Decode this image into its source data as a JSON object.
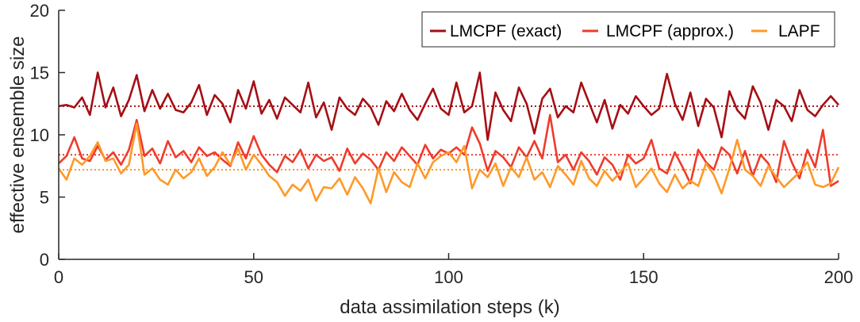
{
  "chart_data": {
    "type": "line",
    "title": "",
    "xlabel": "data assimilation steps (k)",
    "ylabel": "effective ensemble size",
    "xlim": [
      0,
      200
    ],
    "ylim": [
      0,
      20
    ],
    "xticks": [
      0,
      50,
      100,
      150,
      200
    ],
    "yticks": [
      0,
      5,
      10,
      15,
      20
    ],
    "grid": false,
    "legend_position": "top-right",
    "series": [
      {
        "name": "LMCPF (exact)",
        "color": "#a50f15",
        "mean": 12.3,
        "x": [
          0,
          2,
          4,
          6,
          8,
          10,
          12,
          14,
          16,
          18,
          20,
          22,
          24,
          26,
          28,
          30,
          32,
          34,
          36,
          38,
          40,
          42,
          44,
          46,
          48,
          50,
          52,
          54,
          56,
          58,
          60,
          62,
          64,
          66,
          68,
          70,
          72,
          74,
          76,
          78,
          80,
          82,
          84,
          86,
          88,
          90,
          92,
          94,
          96,
          98,
          100,
          102,
          104,
          106,
          108,
          110,
          112,
          114,
          116,
          118,
          120,
          122,
          124,
          126,
          128,
          130,
          132,
          134,
          136,
          138,
          140,
          142,
          144,
          146,
          148,
          150,
          152,
          154,
          156,
          158,
          160,
          162,
          164,
          166,
          168,
          170,
          172,
          174,
          176,
          178,
          180,
          182,
          184,
          186,
          188,
          190,
          192,
          194,
          196,
          198,
          200
        ],
        "values": [
          12.3,
          12.4,
          12.2,
          13.0,
          11.6,
          15.0,
          12.2,
          13.8,
          11.5,
          12.8,
          14.8,
          11.9,
          13.6,
          12.1,
          13.3,
          12.0,
          11.8,
          12.6,
          14.0,
          11.6,
          13.2,
          12.5,
          11.0,
          13.6,
          12.1,
          14.3,
          11.7,
          12.8,
          11.3,
          13.0,
          12.4,
          11.8,
          14.2,
          11.4,
          12.6,
          10.4,
          13.0,
          12.1,
          11.6,
          12.9,
          12.2,
          10.8,
          12.7,
          11.9,
          13.3,
          12.0,
          11.2,
          12.5,
          13.7,
          12.1,
          11.6,
          14.2,
          11.8,
          12.3,
          15.0,
          9.6,
          13.4,
          12.0,
          11.1,
          13.8,
          12.5,
          10.1,
          12.9,
          13.7,
          11.4,
          12.3,
          11.8,
          14.2,
          12.6,
          11.0,
          12.8,
          10.5,
          12.4,
          11.7,
          13.1,
          12.3,
          11.6,
          12.1,
          14.9,
          12.5,
          11.2,
          13.4,
          10.7,
          12.9,
          12.2,
          9.8,
          13.5,
          12.0,
          11.3,
          13.9,
          12.6,
          10.4,
          12.8,
          12.3,
          11.1,
          13.6,
          12.0,
          11.5,
          12.4,
          13.1,
          12.4
        ]
      },
      {
        "name": "LMCPF (approx.)",
        "color": "#ef3b2c",
        "mean": 8.4,
        "x": [
          0,
          2,
          4,
          6,
          8,
          10,
          12,
          14,
          16,
          18,
          20,
          22,
          24,
          26,
          28,
          30,
          32,
          34,
          36,
          38,
          40,
          42,
          44,
          46,
          48,
          50,
          52,
          54,
          56,
          58,
          60,
          62,
          64,
          66,
          68,
          70,
          72,
          74,
          76,
          78,
          80,
          82,
          84,
          86,
          88,
          90,
          92,
          94,
          96,
          98,
          100,
          102,
          104,
          106,
          108,
          110,
          112,
          114,
          116,
          118,
          120,
          122,
          124,
          126,
          128,
          130,
          132,
          134,
          136,
          138,
          140,
          142,
          144,
          146,
          148,
          150,
          152,
          154,
          156,
          158,
          160,
          162,
          164,
          166,
          168,
          170,
          172,
          174,
          176,
          178,
          180,
          182,
          184,
          186,
          188,
          190,
          192,
          194,
          196,
          198,
          200
        ],
        "values": [
          7.7,
          8.3,
          9.8,
          8.1,
          7.9,
          9.1,
          8.0,
          8.6,
          7.6,
          8.8,
          11.2,
          8.3,
          8.9,
          7.7,
          9.5,
          8.2,
          8.7,
          7.8,
          9.0,
          8.3,
          8.6,
          8.0,
          7.5,
          9.4,
          8.1,
          9.9,
          8.4,
          7.6,
          7.0,
          8.3,
          7.8,
          8.8,
          7.3,
          8.4,
          7.9,
          8.2,
          7.1,
          8.9,
          7.7,
          8.5,
          8.0,
          7.2,
          8.6,
          7.9,
          9.0,
          8.3,
          7.6,
          9.2,
          8.1,
          8.8,
          8.5,
          9.0,
          8.4,
          10.6,
          9.3,
          7.1,
          8.7,
          8.2,
          7.4,
          9.0,
          8.2,
          9.5,
          8.1,
          11.6,
          7.8,
          8.4,
          7.2,
          8.6,
          7.9,
          6.8,
          8.2,
          7.6,
          6.4,
          8.4,
          7.7,
          8.1,
          9.6,
          7.3,
          6.9,
          8.6,
          7.4,
          6.1,
          8.8,
          7.8,
          7.2,
          9.0,
          8.4,
          6.9,
          8.7,
          6.7,
          8.4,
          7.7,
          6.2,
          9.5,
          7.8,
          6.5,
          8.8,
          7.4,
          10.4,
          5.9,
          6.3
        ]
      },
      {
        "name": "LAPF",
        "color": "#fe9929",
        "mean": 7.2,
        "x": [
          0,
          2,
          4,
          6,
          8,
          10,
          12,
          14,
          16,
          18,
          20,
          22,
          24,
          26,
          28,
          30,
          32,
          34,
          36,
          38,
          40,
          42,
          44,
          46,
          48,
          50,
          52,
          54,
          56,
          58,
          60,
          62,
          64,
          66,
          68,
          70,
          72,
          74,
          76,
          78,
          80,
          82,
          84,
          86,
          88,
          90,
          92,
          94,
          96,
          98,
          100,
          102,
          104,
          106,
          108,
          110,
          112,
          114,
          116,
          118,
          120,
          122,
          124,
          126,
          128,
          130,
          132,
          134,
          136,
          138,
          140,
          142,
          144,
          146,
          148,
          150,
          152,
          154,
          156,
          158,
          160,
          162,
          164,
          166,
          168,
          170,
          172,
          174,
          176,
          178,
          180,
          182,
          184,
          186,
          188,
          190,
          192,
          194,
          196,
          198,
          200
        ],
        "values": [
          7.3,
          6.4,
          8.1,
          7.6,
          8.3,
          9.4,
          7.9,
          8.1,
          6.9,
          7.6,
          10.9,
          6.8,
          7.3,
          6.4,
          6.0,
          7.2,
          6.5,
          7.0,
          8.1,
          6.7,
          7.4,
          8.6,
          7.6,
          8.9,
          7.2,
          8.4,
          7.6,
          6.7,
          6.2,
          5.1,
          6.0,
          5.5,
          6.4,
          4.7,
          5.8,
          5.7,
          6.5,
          5.2,
          6.6,
          5.7,
          4.5,
          7.3,
          5.4,
          7.0,
          6.2,
          5.8,
          7.7,
          6.5,
          7.8,
          8.3,
          8.6,
          7.8,
          9.1,
          5.7,
          7.2,
          6.6,
          7.7,
          5.9,
          7.4,
          6.6,
          8.2,
          6.4,
          7.0,
          5.8,
          7.5,
          6.8,
          6.0,
          7.9,
          6.5,
          5.9,
          7.1,
          6.3,
          7.0,
          7.7,
          5.8,
          6.5,
          7.3,
          6.1,
          5.4,
          6.8,
          5.7,
          6.3,
          5.9,
          7.7,
          6.8,
          5.3,
          7.3,
          9.6,
          7.2,
          6.7,
          5.9,
          7.5,
          6.6,
          5.8,
          6.4,
          7.0,
          7.8,
          6.0,
          5.8,
          6.1,
          7.4
        ]
      }
    ]
  }
}
